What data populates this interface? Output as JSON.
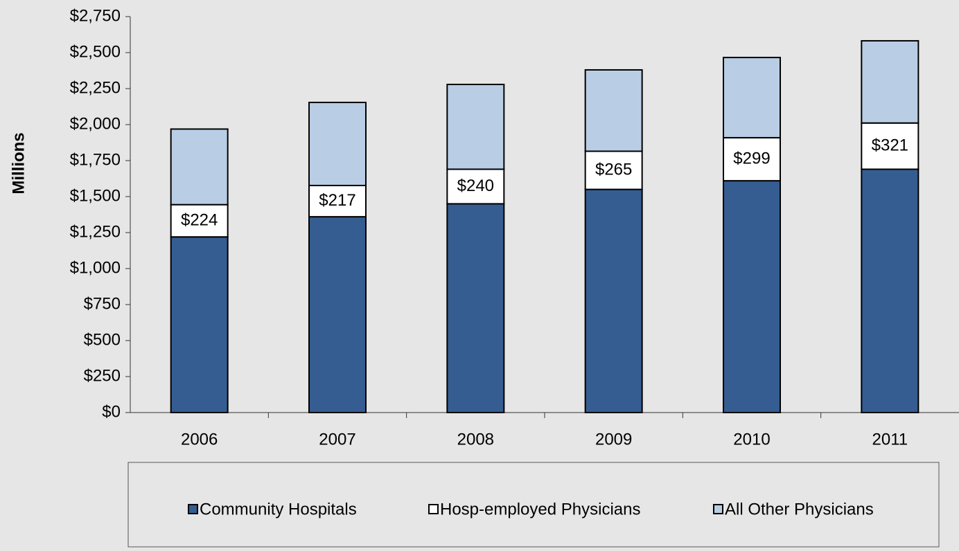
{
  "chart_data": {
    "type": "stacked_bar",
    "y_axis_label": "Millions",
    "categories": [
      "2006",
      "2007",
      "2008",
      "2009",
      "2010",
      "2011"
    ],
    "series": [
      {
        "name": "Community Hospitals",
        "color": "#355d91",
        "values": [
          1220,
          1360,
          1450,
          1550,
          1610,
          1690
        ]
      },
      {
        "name": "Hosp-employed Physicians",
        "color": "#ffffff",
        "values": [
          224,
          217,
          240,
          265,
          299,
          321
        ],
        "value_labels": [
          "$224",
          "$217",
          "$240",
          "$265",
          "$299",
          "$321"
        ]
      },
      {
        "name": "All Other Physicians",
        "color": "#b9cde5",
        "values": [
          525,
          577,
          589,
          565,
          557,
          571
        ]
      }
    ],
    "ylim": [
      0,
      2750
    ],
    "yticks": [
      {
        "value": 0,
        "label": "$0"
      },
      {
        "value": 250,
        "label": "$250"
      },
      {
        "value": 500,
        "label": "$500"
      },
      {
        "value": 750,
        "label": "$750"
      },
      {
        "value": 1000,
        "label": "$1,000"
      },
      {
        "value": 1250,
        "label": "$1,250"
      },
      {
        "value": 1500,
        "label": "$1,500"
      },
      {
        "value": 1750,
        "label": "$1,750"
      },
      {
        "value": 2000,
        "label": "$2,000"
      },
      {
        "value": 2250,
        "label": "$2,250"
      },
      {
        "value": 2500,
        "label": "$2,500"
      },
      {
        "value": 2750,
        "label": "$2,750"
      }
    ],
    "legend": "bottom"
  }
}
